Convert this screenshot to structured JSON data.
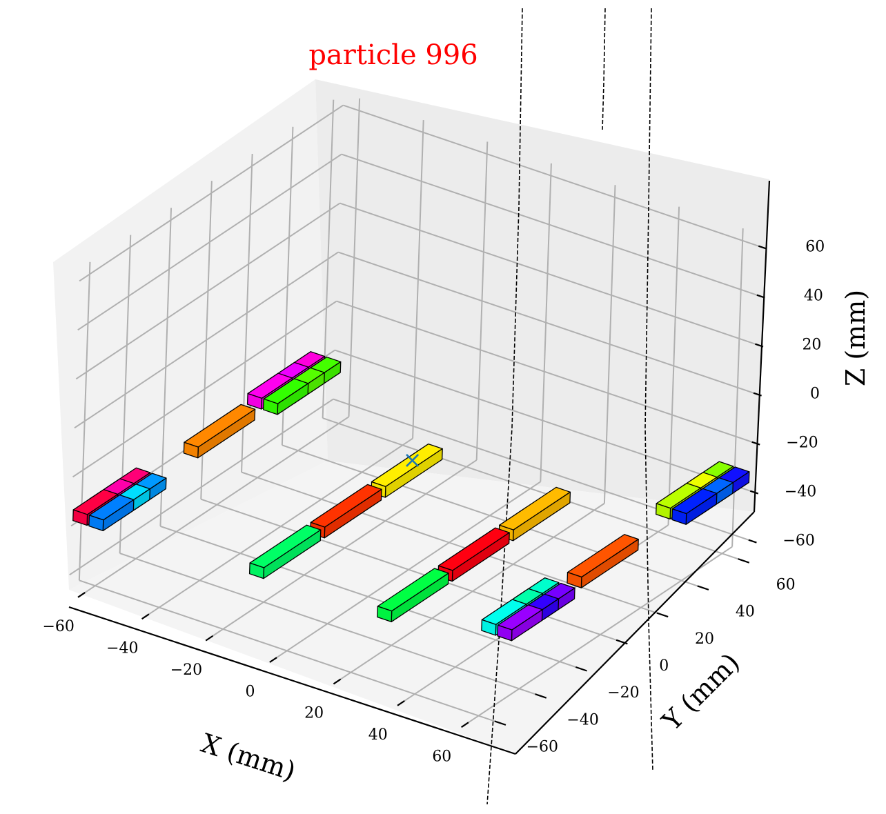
{
  "chart_data": {
    "type": "3d-bar",
    "title": "particle 996",
    "xlabel": "X (mm)",
    "ylabel": "Y (mm)",
    "zlabel": "Z (mm)",
    "xlim": [
      -65,
      65
    ],
    "ylim": [
      -65,
      65
    ],
    "zlim": [
      -65,
      65
    ],
    "xticks": [
      "−60",
      "−40",
      "−20",
      "0",
      "20",
      "40",
      "60"
    ],
    "yticks": [
      "−60",
      "−40",
      "−20",
      "0",
      "20",
      "40",
      "60"
    ],
    "zticks": [
      "60",
      "40",
      "20",
      "0",
      "−20",
      "−40",
      "−60"
    ],
    "grid": true,
    "marker": {
      "symbol": "×",
      "x": 0,
      "y": 0,
      "z": -20,
      "color": "#1f77b4"
    },
    "bars": [
      {
        "x": -62,
        "y": -58,
        "z": -35,
        "color": "#ff0044"
      },
      {
        "x": -57,
        "y": -58,
        "z": -35,
        "color": "#0080ff"
      },
      {
        "x": -62,
        "y": -50,
        "z": -35,
        "color": "#ff00aa"
      },
      {
        "x": -57,
        "y": -50,
        "z": -35,
        "color": "#00ddff"
      },
      {
        "x": -62,
        "y": -42,
        "z": -35,
        "color": "#ff0077"
      },
      {
        "x": -57,
        "y": -42,
        "z": -35,
        "color": "#0099ff"
      },
      {
        "x": -60,
        "y": 0,
        "z": -35,
        "color": "#ff8800"
      },
      {
        "x": -62,
        "y": 28,
        "z": -35,
        "color": "#ff00ee"
      },
      {
        "x": -57,
        "y": 28,
        "z": -35,
        "color": "#33ff00"
      },
      {
        "x": -62,
        "y": 36,
        "z": -35,
        "color": "#ee00ff"
      },
      {
        "x": -57,
        "y": 36,
        "z": -35,
        "color": "#55ff00"
      },
      {
        "x": -62,
        "y": 44,
        "z": -35,
        "color": "#ff00dd"
      },
      {
        "x": -57,
        "y": 44,
        "z": -35,
        "color": "#44ff00"
      },
      {
        "x": -20,
        "y": -30,
        "z": -50,
        "color": "#00ff66"
      },
      {
        "x": -20,
        "y": 0,
        "z": -50,
        "color": "#ff3300"
      },
      {
        "x": -20,
        "y": 30,
        "z": -50,
        "color": "#ffee00"
      },
      {
        "x": 20,
        "y": -30,
        "z": -50,
        "color": "#00ff44"
      },
      {
        "x": 20,
        "y": 0,
        "z": -50,
        "color": "#ff0011"
      },
      {
        "x": 20,
        "y": 30,
        "z": -50,
        "color": "#ffbb00"
      },
      {
        "x": 57,
        "y": -44,
        "z": -35,
        "color": "#00ffee"
      },
      {
        "x": 62,
        "y": -44,
        "z": -35,
        "color": "#9900ff"
      },
      {
        "x": 57,
        "y": -36,
        "z": -35,
        "color": "#00ffaa"
      },
      {
        "x": 62,
        "y": -36,
        "z": -35,
        "color": "#3300ff"
      },
      {
        "x": 57,
        "y": -28,
        "z": -35,
        "color": "#00ffcc"
      },
      {
        "x": 62,
        "y": -28,
        "z": -35,
        "color": "#7700ff"
      },
      {
        "x": 60,
        "y": 0,
        "z": -35,
        "color": "#ff5500"
      },
      {
        "x": 57,
        "y": 42,
        "z": -35,
        "color": "#bbff00"
      },
      {
        "x": 62,
        "y": 42,
        "z": -35,
        "color": "#0022ff"
      },
      {
        "x": 57,
        "y": 50,
        "z": -35,
        "color": "#eeff00"
      },
      {
        "x": 62,
        "y": 50,
        "z": -35,
        "color": "#0066ff"
      },
      {
        "x": 57,
        "y": 58,
        "z": -35,
        "color": "#88ff00"
      },
      {
        "x": 62,
        "y": 58,
        "z": -35,
        "color": "#1111ff"
      }
    ]
  }
}
